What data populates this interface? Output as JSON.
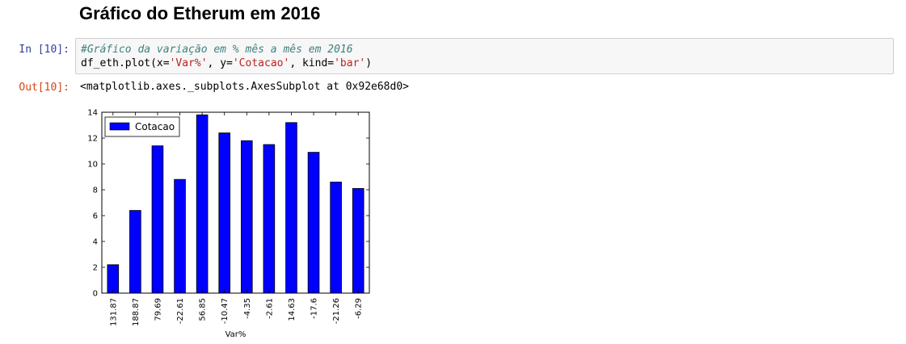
{
  "heading": "Gráfico do Etherum em 2016",
  "input_cell": {
    "prompt": "In [10]:",
    "comment": "#Gráfico da variação em % mês a mês em 2016",
    "code_tokens": [
      "df_eth.plot(x=",
      "'Var%'",
      ", y=",
      "'Cotacao'",
      ", kind=",
      "'bar'",
      ")"
    ]
  },
  "output_cell": {
    "prompt": "Out[10]:",
    "text": "<matplotlib.axes._subplots.AxesSubplot at 0x92e68d0>"
  },
  "chart_data": {
    "type": "bar",
    "categories": [
      "131.87",
      "188.87",
      "79.69",
      "-22.61",
      "56.85",
      "-10.47",
      "-4.35",
      "-2.61",
      "14.63",
      "-17.6",
      "-21.26",
      "-6.29"
    ],
    "series": [
      {
        "name": "Cotacao",
        "values": [
          2.2,
          6.4,
          11.4,
          8.8,
          13.8,
          12.4,
          11.8,
          11.5,
          13.2,
          10.9,
          8.6,
          8.1
        ],
        "color": "#0000ff"
      }
    ],
    "xlabel": "Var%",
    "ylabel": "",
    "ylim": [
      0,
      14
    ],
    "yticks": [
      0,
      2,
      4,
      6,
      8,
      10,
      12,
      14
    ],
    "legend_position": "top-left",
    "grid": false
  }
}
